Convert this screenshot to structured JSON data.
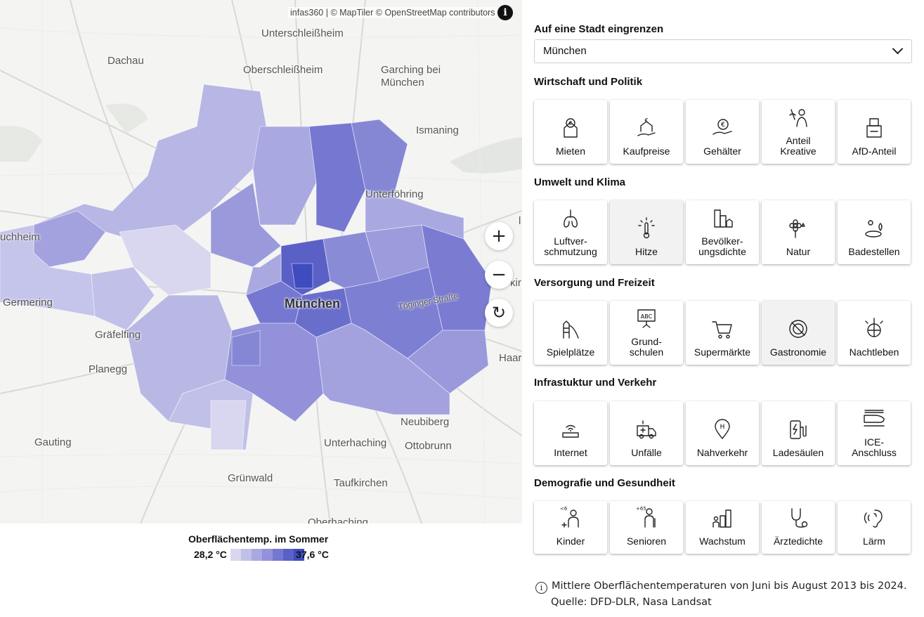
{
  "map": {
    "attribution": "infas360 | © MapTiler © OpenStreetMap contributors",
    "city_label": "München",
    "road_label": "Töginger Straße",
    "places": [
      "Unterschleißheim",
      "Dachau",
      "Oberschleißheim",
      "Garching bei",
      "München",
      "Ismaning",
      "Unterföhring",
      "uchheim",
      "Germering",
      "Gräfelfing",
      "Planegg",
      "Gauting",
      "Grünwald",
      "Taufkirchen",
      "Unterhaching",
      "Ottobrunn",
      "Neubiberg",
      "Haar",
      "Oberhaching",
      "kir",
      "l"
    ],
    "zoom_in": "+",
    "zoom_out": "−",
    "reset": "↻",
    "info_icon": "info-icon",
    "colors": {
      "c1": "#d8d7ef",
      "c2": "#c1c0e8",
      "c3": "#a9a8e0",
      "c4": "#9291d9",
      "c5": "#7677d0",
      "c6": "#5a60c6",
      "c7": "#3f4cc0"
    }
  },
  "legend": {
    "title": "Oberflächentemp. im Sommer",
    "min": "28,2 °C",
    "max": "37,6 °C",
    "colors": [
      "#d8d7ef",
      "#c1c0e8",
      "#a9a8e0",
      "#9291d9",
      "#7677d0",
      "#5a60c6",
      "#3f4cc0"
    ]
  },
  "filter": {
    "label": "Auf eine Stadt eingrenzen",
    "selected": "München"
  },
  "groups": [
    {
      "title": "Wirtschaft und Politik",
      "tiles": [
        {
          "label": "Mieten",
          "icon": "house-euro-icon"
        },
        {
          "label": "Kaufpreise",
          "icon": "house-hand-euro-icon"
        },
        {
          "label": "Gehälter",
          "icon": "hand-coin-icon"
        },
        {
          "label": "Anteil\nKreative",
          "icon": "creative-person-icon"
        },
        {
          "label": "AfD-Anteil",
          "icon": "ballot-box-icon"
        }
      ]
    },
    {
      "title": "Umwelt und Klima",
      "tiles": [
        {
          "label": "Luftver-\nschmutzung",
          "icon": "lungs-icon"
        },
        {
          "label": "Hitze",
          "icon": "thermometer-sun-icon",
          "active": true
        },
        {
          "label": "Bevölker-\nungsdichte",
          "icon": "buildings-icon"
        },
        {
          "label": "Natur",
          "icon": "flower-icon"
        },
        {
          "label": "Badestellen",
          "icon": "lake-sun-icon"
        }
      ]
    },
    {
      "title": "Versorgung und Freizeit",
      "tiles": [
        {
          "label": "Spielplätze",
          "icon": "playground-slide-icon"
        },
        {
          "label": "Grund-\nschulen",
          "icon": "blackboard-abc-icon"
        },
        {
          "label": "Supermärkte",
          "icon": "shopping-cart-icon"
        },
        {
          "label": "Gastronomie",
          "icon": "plate-cutlery-icon",
          "active": true
        },
        {
          "label": "Nachtleben",
          "icon": "disco-ball-icon"
        }
      ]
    },
    {
      "title": "Infrastuktur und Verkehr",
      "tiles": [
        {
          "label": "Internet",
          "icon": "wifi-router-icon"
        },
        {
          "label": "Unfälle",
          "icon": "ambulance-icon"
        },
        {
          "label": "Nahverkehr",
          "icon": "bus-stop-pin-icon"
        },
        {
          "label": "Ladesäulen",
          "icon": "charging-station-icon"
        },
        {
          "label": "ICE-\nAnschluss",
          "icon": "high-speed-train-icon"
        }
      ]
    },
    {
      "title": "Demografie und Gesundheit",
      "tiles": [
        {
          "label": "Kinder",
          "icon": "child-under-6-icon",
          "badge": "<6"
        },
        {
          "label": "Senioren",
          "icon": "senior-over-65-icon",
          "badge": "+65"
        },
        {
          "label": "Wachstum",
          "icon": "growth-bars-people-icon"
        },
        {
          "label": "Ärztedichte",
          "icon": "stethoscope-icon"
        },
        {
          "label": "Lärm",
          "icon": "ear-sound-icon"
        }
      ]
    }
  ],
  "footnote": {
    "line1": "Mittlere Oberflächentemperaturen von Juni bis August 2013 bis 2024.",
    "line2": "Quelle: DFD-DLR, Nasa Landsat"
  }
}
